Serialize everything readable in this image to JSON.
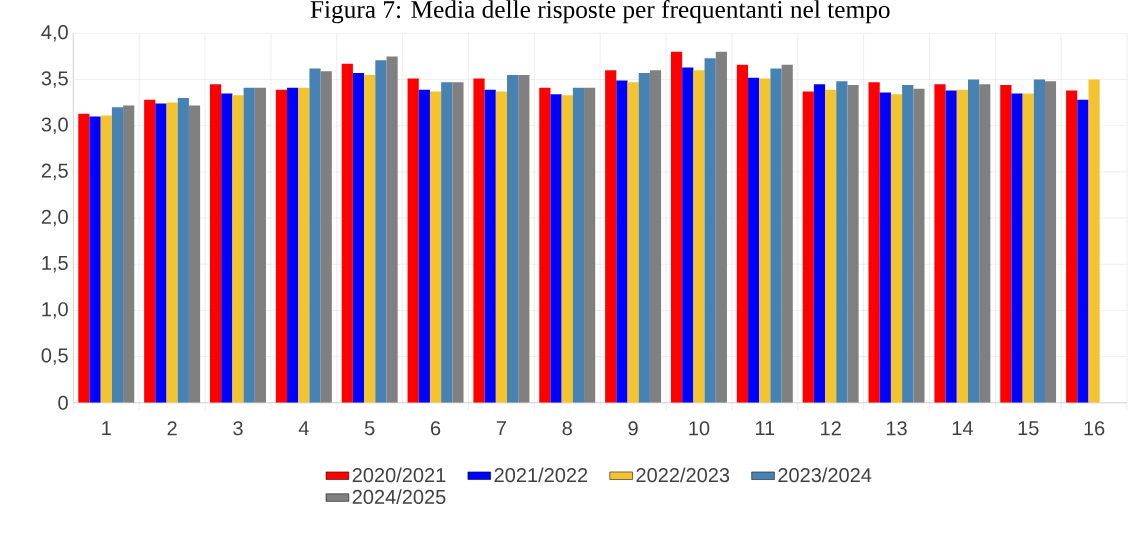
{
  "chart_data": {
    "type": "bar",
    "title": "Figura 7: Media delle risposte per frequentanti nel tempo",
    "categories": [
      "1",
      "2",
      "3",
      "4",
      "5",
      "6",
      "7",
      "8",
      "9",
      "10",
      "11",
      "12",
      "13",
      "14",
      "15",
      "16"
    ],
    "series": [
      {
        "name": "2020/2021",
        "color": "#ff0000",
        "values": [
          3.13,
          3.28,
          3.45,
          3.39,
          3.67,
          3.51,
          3.51,
          3.41,
          3.6,
          3.8,
          3.66,
          3.37,
          3.47,
          3.45,
          3.44,
          3.38
        ]
      },
      {
        "name": "2021/2022",
        "color": "#0000ff",
        "values": [
          3.1,
          3.24,
          3.35,
          3.41,
          3.57,
          3.39,
          3.39,
          3.34,
          3.49,
          3.63,
          3.52,
          3.45,
          3.36,
          3.38,
          3.35,
          3.28
        ]
      },
      {
        "name": "2022/2023",
        "color": "#f4c430",
        "values": [
          3.11,
          3.25,
          3.33,
          3.41,
          3.55,
          3.37,
          3.37,
          3.33,
          3.47,
          3.6,
          3.51,
          3.39,
          3.34,
          3.39,
          3.35,
          3.5
        ]
      },
      {
        "name": "2023/2024",
        "color": "#4682b4",
        "values": [
          3.2,
          3.3,
          3.41,
          3.62,
          3.71,
          3.47,
          3.55,
          3.41,
          3.57,
          3.73,
          3.62,
          3.48,
          3.44,
          3.5,
          3.5,
          null
        ]
      },
      {
        "name": "2024/2025",
        "color": "#808080",
        "values": [
          3.22,
          3.22,
          3.41,
          3.59,
          3.75,
          3.47,
          3.55,
          3.41,
          3.6,
          3.8,
          3.66,
          3.44,
          3.4,
          3.45,
          3.48,
          null
        ]
      }
    ],
    "ylim": [
      0,
      4
    ],
    "yticks": [
      0,
      {
        "value": 0.5,
        "label": "0,5"
      },
      {
        "value": 1,
        "label": "1,0"
      },
      {
        "value": 1.5,
        "label": "1,5"
      },
      {
        "value": 2,
        "label": "2,0"
      },
      {
        "value": 2.5,
        "label": "2,5"
      },
      {
        "value": 3,
        "label": "3,0"
      },
      {
        "value": 3.5,
        "label": "3,5"
      },
      {
        "value": 4,
        "label": "4,0"
      }
    ],
    "grid": true,
    "legend": "bottom"
  }
}
